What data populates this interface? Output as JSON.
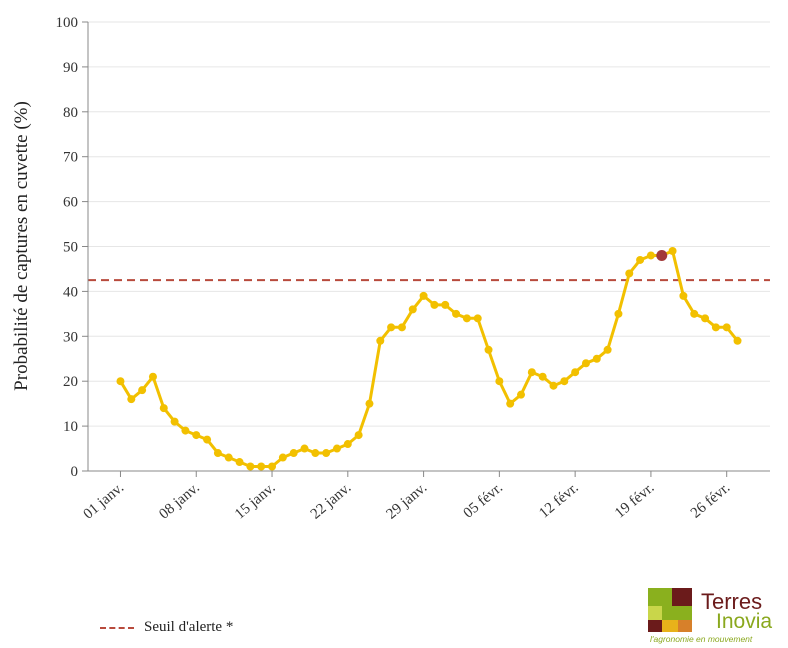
{
  "chart_data": {
    "type": "line",
    "title": "",
    "ylabel": "Probabilité de captures en cuvette (%)",
    "xlabel": "",
    "ylim": [
      0,
      100
    ],
    "yticks": [
      0,
      10,
      20,
      30,
      40,
      50,
      60,
      70,
      80,
      90,
      100
    ],
    "xlim": [
      -3,
      60
    ],
    "xticks": [
      {
        "day": 0,
        "label": "01 janv."
      },
      {
        "day": 7,
        "label": "08 janv."
      },
      {
        "day": 14,
        "label": "15 janv."
      },
      {
        "day": 21,
        "label": "22 janv."
      },
      {
        "day": 28,
        "label": "29 janv."
      },
      {
        "day": 35,
        "label": "05 févr."
      },
      {
        "day": 42,
        "label": "12 févr."
      },
      {
        "day": 49,
        "label": "19 févr."
      },
      {
        "day": 56,
        "label": "26 févr."
      }
    ],
    "grid": true,
    "series": [
      {
        "color": "#f2c000",
        "x": [
          0,
          1,
          2,
          3,
          4,
          5,
          6,
          7,
          8,
          9,
          10,
          11,
          12,
          13,
          14,
          15,
          16,
          17,
          18,
          19,
          20,
          21,
          22,
          23,
          24,
          25,
          26,
          27,
          28,
          29,
          30,
          31,
          32,
          33,
          34,
          35,
          36,
          37,
          38,
          39,
          40,
          41,
          42,
          43,
          44,
          45,
          46,
          47,
          48,
          49,
          50,
          51,
          52,
          53,
          54,
          55,
          56,
          57
        ],
        "values": [
          20,
          16,
          18,
          21,
          14,
          11,
          9,
          8,
          7,
          4,
          3,
          2,
          1,
          1,
          1,
          3,
          4,
          5,
          4,
          4,
          5,
          6,
          8,
          15,
          29,
          32,
          32,
          36,
          39,
          37,
          37,
          35,
          34,
          34,
          27,
          20,
          15,
          17,
          22,
          21,
          19,
          20,
          22,
          24,
          25,
          27,
          35,
          44,
          47,
          48,
          48,
          49,
          39,
          35,
          34,
          32,
          32,
          29
        ]
      }
    ],
    "highlight": {
      "x": 50,
      "value": 48,
      "color": "#a23a3a"
    },
    "threshold": {
      "value": 42.5,
      "color": "#b84a3c",
      "label": "Seuil d'alerte *"
    }
  },
  "logo": {
    "line1": "Terres",
    "line2": "Inovia",
    "tagline": "l'agronomie en mouvement"
  }
}
